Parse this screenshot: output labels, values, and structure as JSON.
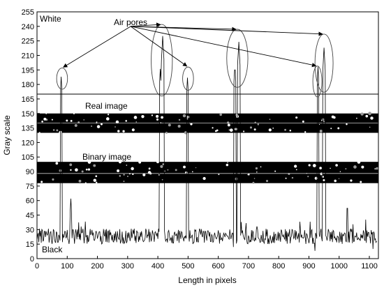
{
  "chart_data": {
    "type": "line",
    "title": "",
    "xlabel": "Length in pixels",
    "ylabel": "Gray scale",
    "xlim": [
      0,
      1130
    ],
    "ylim": [
      0,
      255
    ],
    "x_ticks": [
      0,
      100,
      200,
      300,
      400,
      500,
      600,
      700,
      800,
      900,
      1000,
      1100
    ],
    "y_ticks": [
      0,
      15,
      30,
      45,
      60,
      75,
      90,
      105,
      120,
      135,
      150,
      165,
      180,
      195,
      210,
      225,
      240,
      255
    ],
    "grid": false,
    "line_color": "#000000",
    "baseline": {
      "mean": 23,
      "noise": 8
    },
    "threshold_y": 170,
    "peaks": [
      {
        "x": 80,
        "y": 188,
        "width": 3
      },
      {
        "x": 112,
        "y": 62,
        "width": 2
      },
      {
        "x": 408,
        "y": 196,
        "width": 3
      },
      {
        "x": 416,
        "y": 230,
        "width": 4
      },
      {
        "x": 498,
        "y": 187,
        "width": 3
      },
      {
        "x": 655,
        "y": 201,
        "width": 3
      },
      {
        "x": 668,
        "y": 224,
        "width": 4
      },
      {
        "x": 930,
        "y": 198,
        "width": 3
      },
      {
        "x": 950,
        "y": 218,
        "width": 5
      },
      {
        "x": 1027,
        "y": 58,
        "width": 2
      }
    ],
    "dips": [
      {
        "x": 650,
        "y": 12
      },
      {
        "x": 920,
        "y": 8
      },
      {
        "x": 1112,
        "y": 10
      }
    ],
    "highlight_ellipses": [
      {
        "cx": 83,
        "cy": 186,
        "rx": 18,
        "ry": 11
      },
      {
        "cx": 413,
        "cy": 205,
        "rx": 35,
        "ry": 37
      },
      {
        "cx": 500,
        "cy": 186,
        "rx": 18,
        "ry": 12
      },
      {
        "cx": 663,
        "cy": 207,
        "rx": 35,
        "ry": 30
      },
      {
        "cx": 928,
        "cy": 183,
        "rx": 15,
        "ry": 16
      },
      {
        "cx": 950,
        "cy": 202,
        "rx": 30,
        "ry": 30
      }
    ],
    "arrow_origin": {
      "x": 310,
      "y": 240
    },
    "image_strips": [
      {
        "label": "Real image",
        "y_top": 150,
        "y_bottom": 130,
        "centerline_y": 140,
        "speckle_seed": 7
      },
      {
        "label": "Binary image",
        "y_top": 100,
        "y_bottom": 78,
        "centerline_y": 88,
        "speckle_seed": 19
      }
    ],
    "annotations": {
      "white_label": "White",
      "black_label": "Black",
      "air_pores_label": "Air pores",
      "real_image_label": "Real image",
      "binary_image_label": "Binary image"
    }
  }
}
